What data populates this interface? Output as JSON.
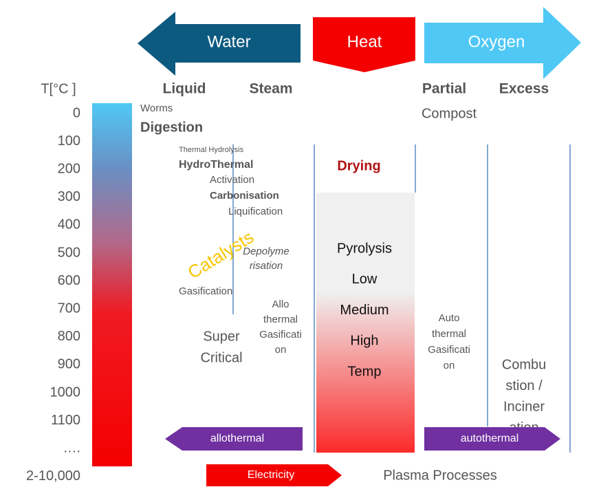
{
  "arrows": {
    "water": "Water",
    "heat": "Heat",
    "oxygen": "Oxygen",
    "allothermal": "allothermal",
    "autothermal": "autothermal",
    "electricity": "Electricity"
  },
  "temperature_axis": {
    "title": "T[°C ]",
    "labels": [
      "0",
      "100",
      "200",
      "300",
      "400",
      "500",
      "600",
      "700",
      "800",
      "900",
      "1000",
      "1100",
      "….",
      "2-10,000"
    ]
  },
  "columns": [
    "Liquid",
    "Steam",
    "Partial",
    "Excess"
  ],
  "processes": {
    "worms": "Worms",
    "digestion": "Digestion",
    "compost": "Compost",
    "thermal_hydrolysis": "Thermal  Hydrolysis",
    "hydrothermal": "HydroThermal",
    "activation": "Activation",
    "carbonisation": "Carbonisation",
    "liquification": "Liquification",
    "catalysts": "Catalysts",
    "depolymerisation": [
      "Depolyme",
      "risation"
    ],
    "gasification": "Gasification",
    "allothermal_gasification": [
      "Allo",
      "thermal",
      "Gasificati",
      "on"
    ],
    "super_critical": [
      "Super",
      "Critical"
    ],
    "drying": "Drying",
    "pyrolysis": [
      "Pyrolysis",
      "Low",
      "Medium",
      "High",
      "Temp"
    ],
    "autothermal_gasification": [
      "Auto",
      "thermal",
      "Gasificati",
      "on"
    ],
    "combustion": [
      "Combu",
      "stion /",
      "Inciner",
      "ation"
    ],
    "plasma": "Plasma Processes"
  }
}
